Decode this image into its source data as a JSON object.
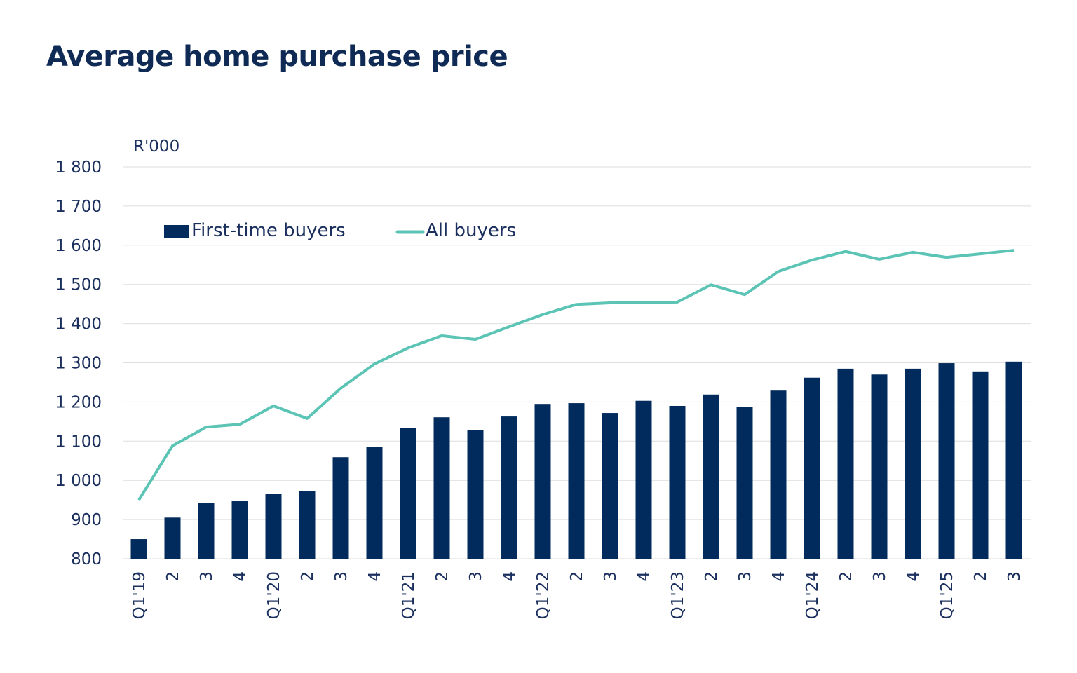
{
  "chart_data": {
    "type": "bar",
    "title": "Average home purchase price",
    "ylabel": "R'000",
    "xlabel": "",
    "ylim": [
      800,
      1800
    ],
    "yticks": [
      800,
      900,
      1000,
      1100,
      1200,
      1300,
      1400,
      1500,
      1600,
      1700,
      1800
    ],
    "ytick_labels": [
      "800",
      "900",
      "1 000",
      "1 100",
      "1 200",
      "1 300",
      "1 400",
      "1 500",
      "1 600",
      "1 700",
      "1 800"
    ],
    "grid": "horizontal",
    "legend_placement": "top-left",
    "categories": [
      "Q1'19",
      "2",
      "3",
      "4",
      "Q1'20",
      "2",
      "3",
      "4",
      "Q1'21",
      "2",
      "3",
      "4",
      "Q1'22",
      "2",
      "3",
      "4",
      "Q1'23",
      "2",
      "3",
      "4",
      "Q1'24",
      "2",
      "3",
      "4",
      "Q1'25",
      "2",
      "3"
    ],
    "series": [
      {
        "name": "First-time buyers",
        "type": "bar",
        "color": "#002b5c",
        "values": [
          850,
          905,
          943,
          947,
          966,
          972,
          1059,
          1086,
          1133,
          1161,
          1129,
          1163,
          1195,
          1197,
          1172,
          1203,
          1190,
          1219,
          1188,
          1229,
          1262,
          1285,
          1270,
          1285,
          1299,
          1278,
          1303
        ]
      },
      {
        "name": "All buyers",
        "type": "line",
        "color": "#5bc4b5",
        "values": [
          950,
          1088,
          1136,
          1143,
          1190,
          1158,
          1235,
          1297,
          1338,
          1369,
          1360,
          1392,
          1423,
          1449,
          1453,
          1453,
          1455,
          1499,
          1474,
          1533,
          1562,
          1584,
          1564,
          1582,
          1569,
          1578,
          1587
        ]
      }
    ]
  }
}
